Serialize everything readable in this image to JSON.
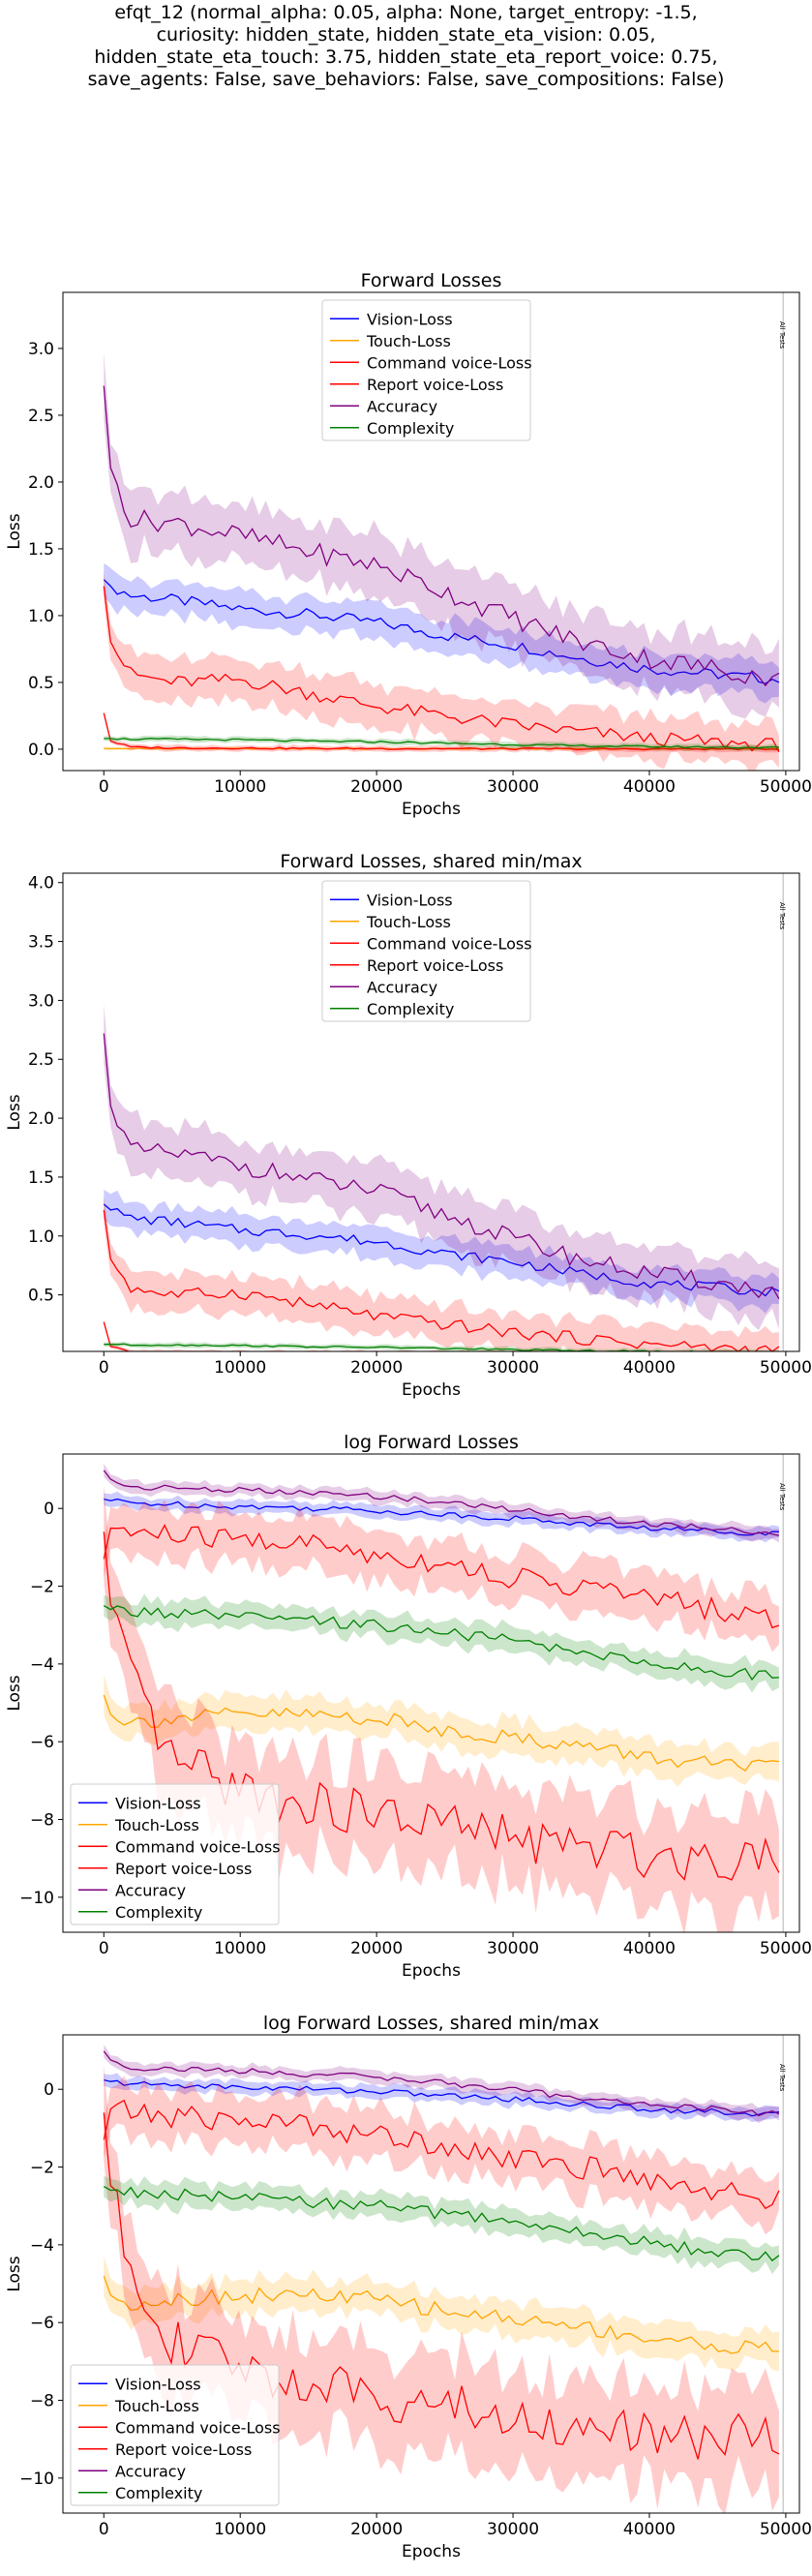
{
  "suptitle": [
    "efqt_12 (normal_alpha: 0.05, alpha: None, target_entropy: -1.5,",
    "curiosity: hidden_state, hidden_state_eta_vision: 0.05,",
    "hidden_state_eta_touch: 3.75, hidden_state_eta_report_voice: 0.75,",
    "save_agents: False, save_behaviors: False, save_compositions: False)"
  ],
  "colors": {
    "vision": "#0000ff",
    "touch": "#ffa500",
    "command": "#ff0000",
    "report": "#ff0000",
    "accuracy": "#800080",
    "complexity": "#008000"
  },
  "chart_data": [
    {
      "type": "line",
      "title": "Forward Losses",
      "xlabel": "Epochs",
      "ylabel": "Loss",
      "xlim": [
        -3000,
        51000
      ],
      "ylim": [
        -0.16,
        3.42
      ],
      "xticks": [
        0,
        10000,
        20000,
        30000,
        40000,
        50000
      ],
      "xtick_labels": [
        "0",
        "10000",
        "20000",
        "30000",
        "40000",
        "50000"
      ],
      "yticks": [
        0.0,
        0.5,
        1.0,
        1.5,
        2.0,
        2.5,
        3.0
      ],
      "ytick_labels": [
        "0.0",
        "0.5",
        "1.0",
        "1.5",
        "2.0",
        "2.5",
        "3.0"
      ],
      "vline": {
        "x": 49800,
        "label": "All Tests"
      },
      "legend": {
        "placement": "top-center",
        "entries": [
          "Vision-Loss",
          "Touch-Loss",
          "Command voice-Loss",
          "Report voice-Loss",
          "Accuracy",
          "Complexity"
        ]
      },
      "grid": false,
      "x": [
        0,
        500,
        2000,
        5000,
        10000,
        15000,
        20000,
        25000,
        30000,
        35000,
        40000,
        45000,
        49500
      ],
      "series": [
        {
          "name": "Vision-Loss",
          "key": "vision",
          "values": [
            1.27,
            1.22,
            1.15,
            1.12,
            1.05,
            1.01,
            0.95,
            0.85,
            0.78,
            0.68,
            0.6,
            0.56,
            0.52
          ],
          "band": 0.12
        },
        {
          "name": "Touch-Loss",
          "key": "touch",
          "values": [
            0.006,
            0.004,
            0.004,
            0.004,
            0.004,
            0.004,
            0.003,
            0.003,
            0.003,
            0.002,
            0.002,
            0.002,
            0.002
          ],
          "band": 0.01
        },
        {
          "name": "Command voice-Loss",
          "key": "command",
          "values": [
            1.22,
            0.8,
            0.56,
            0.5,
            0.52,
            0.42,
            0.32,
            0.25,
            0.18,
            0.13,
            0.08,
            0.05,
            0.03
          ],
          "band": 0.15
        },
        {
          "name": "Report voice-Loss",
          "key": "report",
          "values": [
            0.27,
            0.06,
            0.015,
            0.01,
            0.008,
            0.006,
            0.005,
            0.004,
            0.003,
            0.002,
            0.002,
            0.002,
            0.002
          ],
          "band": 0.02
        },
        {
          "name": "Accuracy",
          "key": "accuracy",
          "values": [
            2.72,
            2.1,
            1.72,
            1.7,
            1.6,
            1.48,
            1.38,
            1.18,
            0.98,
            0.8,
            0.68,
            0.6,
            0.52
          ],
          "band": 0.22
        },
        {
          "name": "Complexity",
          "key": "complexity",
          "values": [
            0.08,
            0.08,
            0.075,
            0.075,
            0.07,
            0.06,
            0.055,
            0.045,
            0.035,
            0.025,
            0.02,
            0.015,
            0.012
          ],
          "band": 0.02
        }
      ]
    },
    {
      "type": "line",
      "title": "Forward Losses, shared min/max",
      "xlabel": "Epochs",
      "ylabel": "Loss",
      "xlim": [
        -3000,
        51000
      ],
      "ylim": [
        0.02,
        4.08
      ],
      "xticks": [
        0,
        10000,
        20000,
        30000,
        40000,
        50000
      ],
      "xtick_labels": [
        "0",
        "10000",
        "20000",
        "30000",
        "40000",
        "50000"
      ],
      "yticks": [
        0.5,
        1.0,
        1.5,
        2.0,
        2.5,
        3.0,
        3.5,
        4.0
      ],
      "ytick_labels": [
        "0.5",
        "1.0",
        "1.5",
        "2.0",
        "2.5",
        "3.0",
        "3.5",
        "4.0"
      ],
      "vline": {
        "x": 49800,
        "label": "All Tests"
      },
      "legend": {
        "placement": "top-center",
        "entries": [
          "Vision-Loss",
          "Touch-Loss",
          "Command voice-Loss",
          "Report voice-Loss",
          "Accuracy",
          "Complexity"
        ]
      },
      "grid": false,
      "x": [
        0,
        500,
        2000,
        5000,
        10000,
        15000,
        20000,
        25000,
        30000,
        35000,
        40000,
        45000,
        49500
      ],
      "series": [
        {
          "name": "Vision-Loss",
          "key": "vision",
          "values": [
            1.27,
            1.22,
            1.15,
            1.12,
            1.05,
            1.01,
            0.95,
            0.85,
            0.78,
            0.68,
            0.6,
            0.56,
            0.52
          ],
          "band": 0.12
        },
        {
          "name": "Touch-Loss",
          "key": "touch",
          "values": [
            0.006,
            0.004,
            0.004,
            0.004,
            0.004,
            0.004,
            0.003,
            0.003,
            0.003,
            0.002,
            0.002,
            0.002,
            0.002
          ],
          "band": 0.01
        },
        {
          "name": "Command voice-Loss",
          "key": "command",
          "values": [
            1.22,
            0.8,
            0.56,
            0.5,
            0.52,
            0.42,
            0.32,
            0.25,
            0.18,
            0.13,
            0.08,
            0.05,
            0.03
          ],
          "band": 0.15
        },
        {
          "name": "Report voice-Loss",
          "key": "report",
          "values": [
            0.27,
            0.06,
            0.015,
            0.01,
            0.008,
            0.006,
            0.005,
            0.004,
            0.003,
            0.002,
            0.002,
            0.002,
            0.002
          ],
          "band": 0.02
        },
        {
          "name": "Accuracy",
          "key": "accuracy",
          "values": [
            2.72,
            2.1,
            1.72,
            1.7,
            1.6,
            1.48,
            1.38,
            1.18,
            0.98,
            0.8,
            0.68,
            0.6,
            0.52
          ],
          "band": 0.22
        },
        {
          "name": "Complexity",
          "key": "complexity",
          "values": [
            0.08,
            0.08,
            0.075,
            0.075,
            0.07,
            0.06,
            0.055,
            0.045,
            0.035,
            0.025,
            0.02,
            0.015,
            0.012
          ],
          "band": 0.02
        }
      ]
    },
    {
      "type": "line",
      "title": "log Forward Losses",
      "xlabel": "Epochs",
      "ylabel": "Loss",
      "xlim": [
        -3000,
        51000
      ],
      "ylim": [
        -10.9,
        1.4
      ],
      "xticks": [
        0,
        10000,
        20000,
        30000,
        40000,
        50000
      ],
      "xtick_labels": [
        "0",
        "10000",
        "20000",
        "30000",
        "40000",
        "50000"
      ],
      "yticks": [
        0,
        -2,
        -4,
        -6,
        -8,
        -10
      ],
      "ytick_labels": [
        "0",
        "−2",
        "−4",
        "−6",
        "−8",
        "−10"
      ],
      "vline": {
        "x": 49800,
        "label": "All Tests"
      },
      "legend": {
        "placement": "lower-left",
        "entries": [
          "Vision-Loss",
          "Touch-Loss",
          "Command voice-Loss",
          "Report voice-Loss",
          "Accuracy",
          "Complexity"
        ]
      },
      "grid": false,
      "x": [
        0,
        500,
        2000,
        5000,
        10000,
        15000,
        20000,
        25000,
        30000,
        35000,
        40000,
        45000,
        49500
      ],
      "series": [
        {
          "name": "Vision-Loss",
          "key": "vision",
          "values": [
            0.24,
            0.2,
            0.14,
            0.11,
            0.05,
            0.01,
            -0.05,
            -0.16,
            -0.25,
            -0.39,
            -0.51,
            -0.58,
            -0.65
          ],
          "band": 0.15
        },
        {
          "name": "Touch-Loss",
          "key": "touch",
          "values": [
            -4.8,
            -5.3,
            -5.5,
            -5.4,
            -5.3,
            -5.3,
            -5.4,
            -5.7,
            -5.9,
            -6.1,
            -6.4,
            -6.6,
            -6.7
          ],
          "band": 0.4
        },
        {
          "name": "Command voice-Loss",
          "key": "command",
          "values": [
            -1.3,
            -0.5,
            -0.6,
            -0.7,
            -0.8,
            -0.9,
            -1.2,
            -1.4,
            -1.8,
            -2.0,
            -2.3,
            -2.6,
            -2.9
          ],
          "band": 0.6
        },
        {
          "name": "Report voice-Loss",
          "key": "report",
          "values": [
            -0.6,
            -2.5,
            -4.5,
            -6.5,
            -7.2,
            -7.6,
            -7.9,
            -8.1,
            -8.5,
            -8.7,
            -8.9,
            -9.0,
            -8.8
          ],
          "band": 1.2
        },
        {
          "name": "Accuracy",
          "key": "accuracy",
          "values": [
            0.98,
            0.75,
            0.55,
            0.53,
            0.47,
            0.39,
            0.32,
            0.16,
            -0.02,
            -0.22,
            -0.39,
            -0.51,
            -0.65
          ],
          "band": 0.15
        },
        {
          "name": "Complexity",
          "key": "complexity",
          "values": [
            -2.5,
            -2.6,
            -2.65,
            -2.7,
            -2.8,
            -2.9,
            -3.0,
            -3.2,
            -3.4,
            -3.7,
            -3.95,
            -4.2,
            -4.35
          ],
          "band": 0.3
        }
      ]
    },
    {
      "type": "line",
      "title": "log Forward Losses, shared min/max",
      "xlabel": "Epochs",
      "ylabel": "Loss",
      "xlim": [
        -3000,
        51000
      ],
      "ylim": [
        -10.9,
        1.4
      ],
      "xticks": [
        0,
        10000,
        20000,
        30000,
        40000,
        50000
      ],
      "xtick_labels": [
        "0",
        "10000",
        "20000",
        "30000",
        "40000",
        "50000"
      ],
      "yticks": [
        0,
        -2,
        -4,
        -6,
        -8,
        -10
      ],
      "ytick_labels": [
        "0",
        "−2",
        "−4",
        "−6",
        "−8",
        "−10"
      ],
      "vline": {
        "x": 49800,
        "label": "All Tests"
      },
      "legend": {
        "placement": "lower-left",
        "entries": [
          "Vision-Loss",
          "Touch-Loss",
          "Command voice-Loss",
          "Report voice-Loss",
          "Accuracy",
          "Complexity"
        ]
      },
      "grid": false,
      "x": [
        0,
        500,
        2000,
        5000,
        10000,
        15000,
        20000,
        25000,
        30000,
        35000,
        40000,
        45000,
        49500
      ],
      "series": [
        {
          "name": "Vision-Loss",
          "key": "vision",
          "values": [
            0.24,
            0.2,
            0.14,
            0.11,
            0.05,
            0.01,
            -0.05,
            -0.16,
            -0.25,
            -0.39,
            -0.51,
            -0.58,
            -0.65
          ],
          "band": 0.15
        },
        {
          "name": "Touch-Loss",
          "key": "touch",
          "values": [
            -4.8,
            -5.3,
            -5.5,
            -5.4,
            -5.3,
            -5.3,
            -5.4,
            -5.7,
            -5.9,
            -6.1,
            -6.4,
            -6.6,
            -6.7
          ],
          "band": 0.4
        },
        {
          "name": "Command voice-Loss",
          "key": "command",
          "values": [
            -1.3,
            -0.5,
            -0.6,
            -0.7,
            -0.8,
            -0.9,
            -1.2,
            -1.4,
            -1.8,
            -2.0,
            -2.3,
            -2.6,
            -2.9
          ],
          "band": 0.6
        },
        {
          "name": "Report voice-Loss",
          "key": "report",
          "values": [
            -0.6,
            -2.5,
            -4.5,
            -6.5,
            -7.2,
            -7.6,
            -7.9,
            -8.1,
            -8.5,
            -8.7,
            -8.9,
            -9.0,
            -8.8
          ],
          "band": 1.2
        },
        {
          "name": "Accuracy",
          "key": "accuracy",
          "values": [
            0.98,
            0.75,
            0.55,
            0.53,
            0.47,
            0.39,
            0.32,
            0.16,
            -0.02,
            -0.22,
            -0.39,
            -0.51,
            -0.65
          ],
          "band": 0.15
        },
        {
          "name": "Complexity",
          "key": "complexity",
          "values": [
            -2.5,
            -2.6,
            -2.65,
            -2.7,
            -2.8,
            -2.9,
            -3.0,
            -3.2,
            -3.4,
            -3.7,
            -3.95,
            -4.2,
            -4.35
          ],
          "band": 0.3
        }
      ]
    }
  ]
}
